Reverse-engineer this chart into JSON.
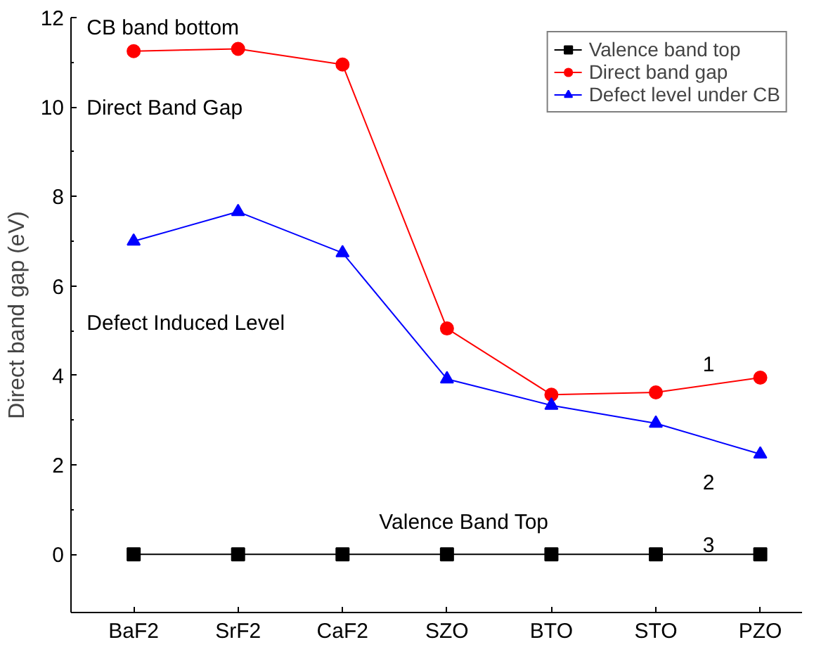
{
  "chart_data": {
    "type": "line",
    "ylabel": "Direct band gap (eV)",
    "categories": [
      "BaF2",
      "SrF2",
      "CaF2",
      "SZO",
      "BTO",
      "STO",
      "PZO"
    ],
    "series": [
      {
        "name": "Valence band top",
        "color": "#000000",
        "marker": "square",
        "values": [
          0,
          0,
          0,
          0,
          0,
          0,
          0
        ]
      },
      {
        "name": "Direct band gap",
        "color": "#ff0000",
        "marker": "circle",
        "values": [
          11.25,
          11.3,
          10.95,
          5.05,
          3.57,
          3.62,
          3.95
        ]
      },
      {
        "name": "Defect level under CB",
        "color": "#0000ff",
        "marker": "triangle",
        "values": [
          7.0,
          7.66,
          6.74,
          3.92,
          3.33,
          2.93,
          2.24
        ]
      }
    ],
    "ylim": [
      -1.3,
      12
    ],
    "yticks": [
      0,
      2,
      4,
      6,
      8,
      10,
      12
    ],
    "grid": false,
    "legend": "top right",
    "line_style": "solid",
    "annotations": [
      "CB band bottom",
      "Direct Band Gap",
      "Defect Induced Level",
      "Valence Band Top",
      "1",
      "2",
      "3"
    ]
  }
}
